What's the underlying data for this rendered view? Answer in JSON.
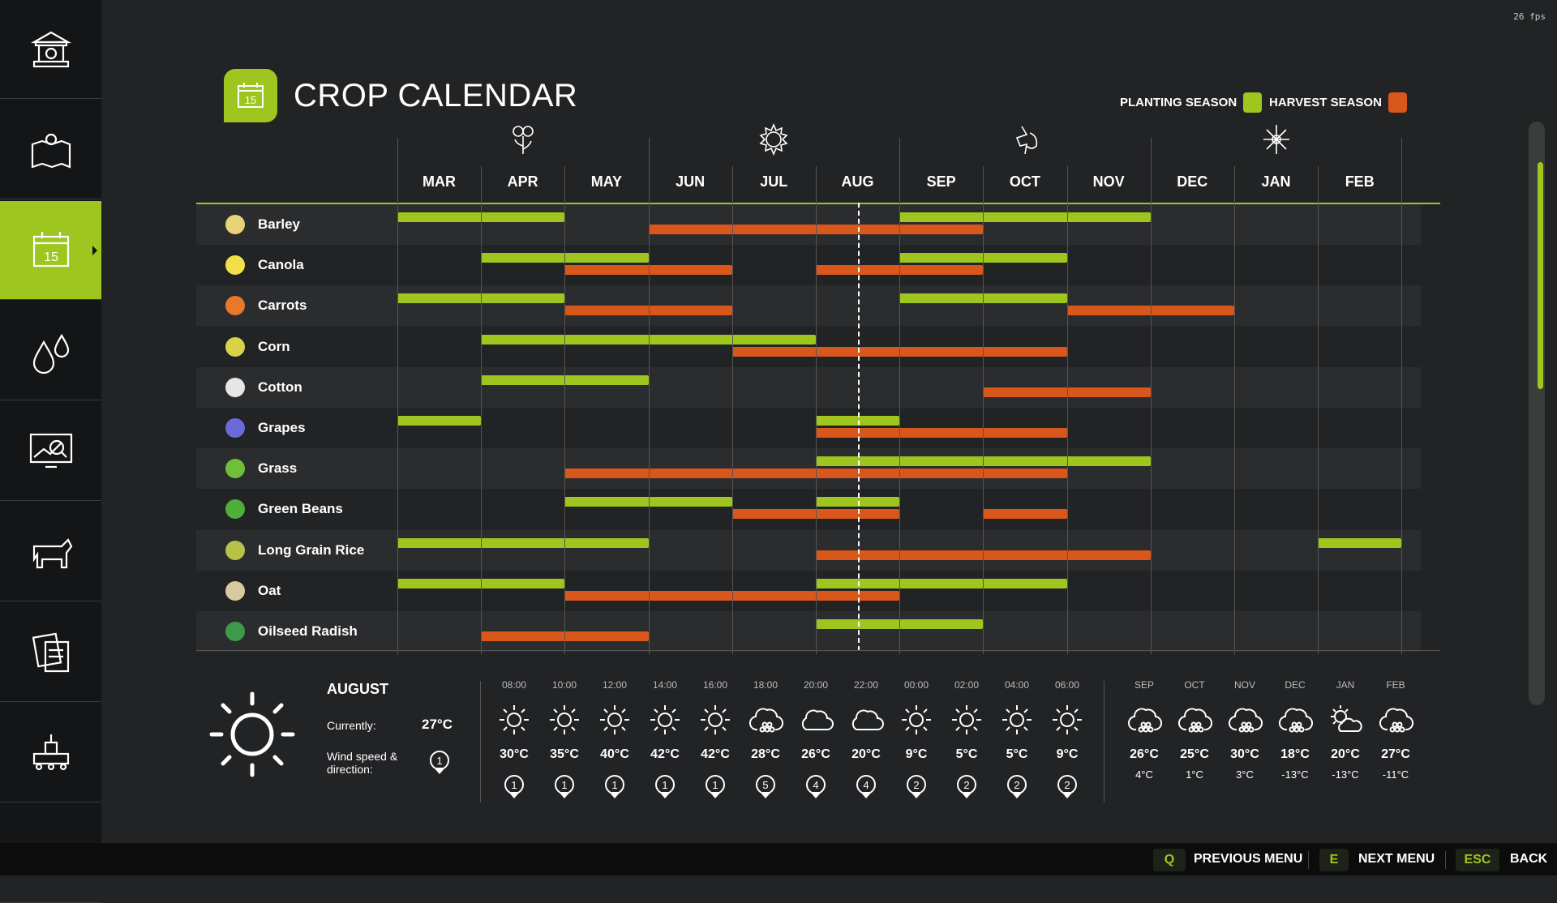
{
  "fps": "26 fps",
  "title": "CROP CALENDAR",
  "title_icon_text": "15",
  "legend": {
    "planting": "PLANTING SEASON",
    "harvest": "HARVEST SEASON",
    "planting_color": "#9fc61f",
    "harvest_color": "#d9571b"
  },
  "sidebar": [
    {
      "icon": "bank-icon"
    },
    {
      "icon": "map-icon"
    },
    {
      "icon": "calendar-icon",
      "active": true,
      "text": "15"
    },
    {
      "icon": "water-drops-icon"
    },
    {
      "icon": "price-chart-icon"
    },
    {
      "icon": "cow-icon"
    },
    {
      "icon": "contracts-icon"
    },
    {
      "icon": "production-icon"
    },
    {
      "icon": "statistics-icon"
    }
  ],
  "months": [
    "MAR",
    "APR",
    "MAY",
    "JUN",
    "JUL",
    "AUG",
    "SEP",
    "OCT",
    "NOV",
    "DEC",
    "JAN",
    "FEB"
  ],
  "seasons": [
    {
      "icon": "spring-icon",
      "month_index": 1
    },
    {
      "icon": "summer-icon",
      "month_index": 4
    },
    {
      "icon": "autumn-icon",
      "month_index": 7
    },
    {
      "icon": "winter-icon",
      "month_index": 10
    }
  ],
  "current_month_position": 5.5,
  "chart_data": {
    "type": "gantt",
    "unit": "month index (0=MAR .. 11=FEB), inclusive ranges",
    "crops": [
      {
        "name": "Barley",
        "icon_color": "#e8d27a",
        "planting": [
          [
            0,
            1
          ],
          [
            6,
            8
          ]
        ],
        "harvest": [
          [
            3,
            6
          ]
        ]
      },
      {
        "name": "Canola",
        "icon_color": "#f2e04a",
        "planting": [
          [
            1,
            2
          ],
          [
            6,
            7
          ]
        ],
        "harvest": [
          [
            2,
            3
          ],
          [
            5,
            6
          ]
        ]
      },
      {
        "name": "Carrots",
        "icon_color": "#e8782a",
        "planting": [
          [
            0,
            1
          ],
          [
            6,
            7
          ]
        ],
        "harvest": [
          [
            2,
            3
          ],
          [
            8,
            9
          ]
        ]
      },
      {
        "name": "Corn",
        "icon_color": "#d9d34a",
        "planting": [
          [
            1,
            4
          ]
        ],
        "harvest": [
          [
            4,
            7
          ]
        ]
      },
      {
        "name": "Cotton",
        "icon_color": "#e6e6e6",
        "planting": [
          [
            1,
            2
          ]
        ],
        "harvest": [
          [
            7,
            8
          ]
        ]
      },
      {
        "name": "Grapes",
        "icon_color": "#6a6ad8",
        "planting": [
          [
            0,
            0
          ],
          [
            5,
            5
          ]
        ],
        "harvest": [
          [
            5,
            7
          ]
        ]
      },
      {
        "name": "Grass",
        "icon_color": "#6fbf3a",
        "planting": [
          [
            5,
            8
          ]
        ],
        "harvest": [
          [
            2,
            7
          ]
        ]
      },
      {
        "name": "Green Beans",
        "icon_color": "#4fae3a",
        "planting": [
          [
            2,
            3
          ],
          [
            5,
            5
          ]
        ],
        "harvest": [
          [
            4,
            5
          ],
          [
            7,
            7
          ]
        ]
      },
      {
        "name": "Long Grain Rice",
        "icon_color": "#b7c24a",
        "planting": [
          [
            0,
            2
          ],
          [
            11,
            11
          ]
        ],
        "harvest": [
          [
            5,
            8
          ]
        ]
      },
      {
        "name": "Oat",
        "icon_color": "#d8c9a0",
        "planting": [
          [
            0,
            1
          ],
          [
            5,
            7
          ]
        ],
        "harvest": [
          [
            2,
            5
          ]
        ]
      },
      {
        "name": "Oilseed Radish",
        "icon_color": "#3c9a4a",
        "planting": [
          [
            5,
            6
          ]
        ],
        "harvest": [
          [
            1,
            2
          ]
        ]
      }
    ]
  },
  "weather": {
    "month": "AUGUST",
    "currently_label": "Currently:",
    "currently_value": "27°C",
    "wind_label_1": "Wind speed &",
    "wind_label_2": "direction:",
    "wind_value": "1",
    "hourly": [
      {
        "time": "08:00",
        "icon": "sun",
        "temp": "30°C",
        "wind": "1"
      },
      {
        "time": "10:00",
        "icon": "sun",
        "temp": "35°C",
        "wind": "1"
      },
      {
        "time": "12:00",
        "icon": "sun",
        "temp": "40°C",
        "wind": "1"
      },
      {
        "time": "14:00",
        "icon": "sun",
        "temp": "42°C",
        "wind": "1"
      },
      {
        "time": "16:00",
        "icon": "sun",
        "temp": "42°C",
        "wind": "1"
      },
      {
        "time": "18:00",
        "icon": "hail",
        "temp": "28°C",
        "wind": "5"
      },
      {
        "time": "20:00",
        "icon": "cloud",
        "temp": "26°C",
        "wind": "4"
      },
      {
        "time": "22:00",
        "icon": "cloud",
        "temp": "20°C",
        "wind": "4"
      },
      {
        "time": "00:00",
        "icon": "sun",
        "temp": "9°C",
        "wind": "2"
      },
      {
        "time": "02:00",
        "icon": "sun",
        "temp": "5°C",
        "wind": "2"
      },
      {
        "time": "04:00",
        "icon": "sun",
        "temp": "5°C",
        "wind": "2"
      },
      {
        "time": "06:00",
        "icon": "sun",
        "temp": "9°C",
        "wind": "2"
      }
    ],
    "monthly": [
      {
        "month": "SEP",
        "icon": "hail",
        "high": "26°C",
        "low": "4°C"
      },
      {
        "month": "OCT",
        "icon": "hail",
        "high": "25°C",
        "low": "1°C"
      },
      {
        "month": "NOV",
        "icon": "hail",
        "high": "30°C",
        "low": "3°C"
      },
      {
        "month": "DEC",
        "icon": "hail",
        "high": "18°C",
        "low": "-13°C"
      },
      {
        "month": "JAN",
        "icon": "partly-cloudy",
        "high": "20°C",
        "low": "-13°C"
      },
      {
        "month": "FEB",
        "icon": "hail",
        "high": "27°C",
        "low": "-11°C"
      }
    ]
  },
  "footer": {
    "prev_key": "Q",
    "prev_label": "PREVIOUS MENU",
    "next_key": "E",
    "next_label": "NEXT MENU",
    "back_key": "ESC",
    "back_label": "BACK"
  }
}
